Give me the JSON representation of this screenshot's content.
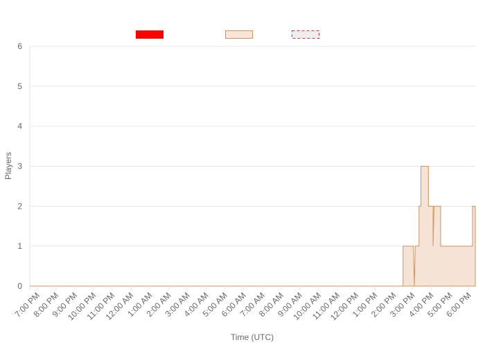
{
  "chart_data": {
    "type": "area",
    "title": "",
    "xlabel": "Time (UTC)",
    "ylabel": "Players",
    "ylim": [
      0,
      6
    ],
    "y_ticks": [
      0,
      1,
      2,
      3,
      4,
      5,
      6
    ],
    "x_tick_labels": [
      "7:00 PM",
      "8:00 PM",
      "9:00 PM",
      "10:00 PM",
      "11:00 PM",
      "12:00 AM",
      "1:00 AM",
      "2:00 AM",
      "3:00 AM",
      "4:00 AM",
      "5:00 AM",
      "6:00 AM",
      "7:00 AM",
      "8:00 AM",
      "9:00 AM",
      "10:00 AM",
      "11:00 AM",
      "12:00 PM",
      "1:00 PM",
      "2:00 PM",
      "3:00 PM",
      "4:00 PM",
      "5:00 PM",
      "6:00 PM"
    ],
    "x_range_hours": [
      18.6,
      42.35
    ],
    "grid": true,
    "legend_position": "top",
    "legend": [
      {
        "name": "",
        "fill": "#ff0000",
        "stroke": "#ff0000",
        "dashed": false
      },
      {
        "name": "",
        "fill": "#fae6d8",
        "stroke": "#d4915a",
        "dashed": false
      },
      {
        "name": "",
        "fill": "#eeeeee",
        "stroke": "#e03030",
        "dashed": true
      }
    ],
    "series": [
      {
        "fill": "#f5e3d6",
        "stroke": "#d4915a",
        "points": [
          [
            18.6,
            0
          ],
          [
            38.5,
            0
          ],
          [
            38.5,
            1
          ],
          [
            39.05,
            1
          ],
          [
            39.1,
            0
          ],
          [
            39.15,
            1
          ],
          [
            39.35,
            1
          ],
          [
            39.35,
            2
          ],
          [
            39.45,
            2
          ],
          [
            39.45,
            3
          ],
          [
            39.85,
            3
          ],
          [
            39.85,
            2
          ],
          [
            40.1,
            2
          ],
          [
            40.1,
            1
          ],
          [
            40.15,
            2
          ],
          [
            40.5,
            2
          ],
          [
            40.5,
            1
          ],
          [
            42.2,
            1
          ],
          [
            42.2,
            2
          ],
          [
            42.35,
            2
          ],
          [
            42.35,
            0
          ]
        ]
      }
    ]
  }
}
